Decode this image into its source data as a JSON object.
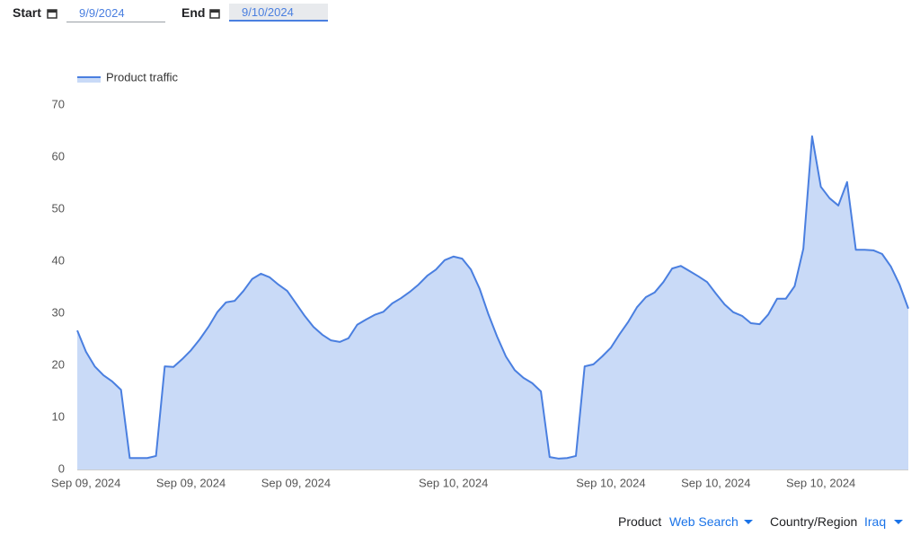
{
  "controls": {
    "start_label": "Start",
    "start_value": "9/9/2024",
    "end_label": "End",
    "end_value": "9/10/2024",
    "product_label": "Product",
    "product_value": "Web Search",
    "region_label": "Country/Region",
    "region_value": "Iraq"
  },
  "chart_data": {
    "type": "area",
    "categories": [
      null,
      "Sep 09, 2024",
      null,
      null,
      null,
      null,
      null,
      null,
      null,
      null,
      null,
      null,
      null,
      "Sep 09, 2024",
      null,
      null,
      null,
      null,
      null,
      null,
      null,
      null,
      null,
      null,
      null,
      "Sep 09, 2024",
      null,
      null,
      null,
      null,
      null,
      null,
      null,
      null,
      null,
      null,
      null,
      null,
      null,
      null,
      null,
      null,
      null,
      "Sep 10, 2024",
      null,
      null,
      null,
      null,
      null,
      null,
      null,
      null,
      null,
      null,
      null,
      null,
      null,
      null,
      null,
      null,
      null,
      "Sep 10, 2024",
      null,
      null,
      null,
      null,
      null,
      null,
      null,
      null,
      null,
      null,
      null,
      "Sep 10, 2024",
      null,
      null,
      null,
      null,
      null,
      null,
      null,
      null,
      null,
      null,
      null,
      "Sep 10, 2024",
      null,
      null,
      null,
      null,
      null,
      null,
      null,
      null,
      null,
      null
    ],
    "series": [
      {
        "name": "Product traffic",
        "color": "#4a7fe0",
        "fill": "#c9daf7",
        "values": [
          26.7,
          22.6,
          19.8,
          18.1,
          16.9,
          15.3,
          2.2,
          2.2,
          2.2,
          2.6,
          19.8,
          19.7,
          21.2,
          22.9,
          25,
          27.4,
          30.2,
          32.1,
          32.4,
          34.3,
          36.6,
          37.6,
          36.9,
          35.5,
          34.3,
          31.9,
          29.5,
          27.4,
          25.9,
          24.8,
          24.5,
          25.2,
          27.8,
          28.8,
          29.7,
          30.3,
          31.9,
          32.9,
          34.1,
          35.5,
          37.2,
          38.4,
          40.2,
          40.9,
          40.5,
          38.4,
          34.7,
          29.8,
          25.5,
          21.7,
          19.1,
          17.6,
          16.6,
          15,
          2.4,
          2.1,
          2.2,
          2.6,
          19.8,
          20.2,
          21.7,
          23.4,
          26,
          28.4,
          31.2,
          33.1,
          34,
          36,
          38.6,
          39.1,
          38.1,
          37.1,
          36,
          33.8,
          31.7,
          30.2,
          29.5,
          28.1,
          27.9,
          29.8,
          32.8,
          32.8,
          35.2,
          42.4,
          64,
          54.3,
          52.1,
          50.7,
          55.2,
          42.2,
          42.2,
          42.1,
          41.4,
          39,
          35.5,
          30.9
        ]
      }
    ],
    "ylim": [
      0,
      70
    ],
    "yticks": [
      0,
      10,
      20,
      30,
      40,
      50,
      60,
      70
    ],
    "grid": false,
    "legend": "top-left"
  }
}
